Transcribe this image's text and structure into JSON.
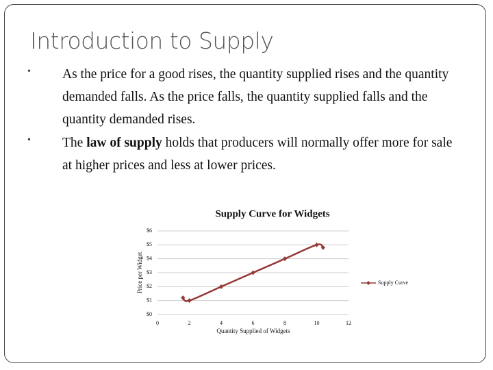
{
  "title": "Introduction to Supply",
  "bullets": [
    {
      "parts": [
        "As the price for a good rises, the quantity supplied rises and the quantity demanded falls. As the price falls, the quantity supplied falls and the quantity demanded rises."
      ]
    },
    {
      "parts": [
        "The",
        "law of supply",
        "holds that producers will normally offer more for sale at higher prices and less at lower prices."
      ]
    }
  ],
  "chart_data": {
    "type": "line",
    "title": "Supply Curve for Widgets",
    "x_label": "Quantity Supplied of Widgets",
    "y_label": "Price per Widget",
    "smooth": true,
    "grid": true,
    "legend": "right",
    "xlim": [
      0,
      12
    ],
    "xticks": [
      0,
      2,
      4,
      6,
      8,
      10,
      12
    ],
    "ylim": [
      0,
      6
    ],
    "yticks": [
      {
        "value": 0,
        "label": "$0"
      },
      {
        "value": 1,
        "label": "$1"
      },
      {
        "value": 2,
        "label": "$2"
      },
      {
        "value": 3,
        "label": "$3"
      },
      {
        "value": 4,
        "label": "$4"
      },
      {
        "value": 5,
        "label": "$5"
      },
      {
        "value": 6,
        "label": "$6"
      }
    ],
    "series": [
      {
        "name": "Supply Curve",
        "color": "#953735",
        "x": [
          1.6,
          2,
          4,
          6,
          8,
          10,
          10.4
        ],
        "values": [
          1.2,
          1,
          2,
          3,
          4,
          5,
          4.8
        ]
      }
    ]
  }
}
